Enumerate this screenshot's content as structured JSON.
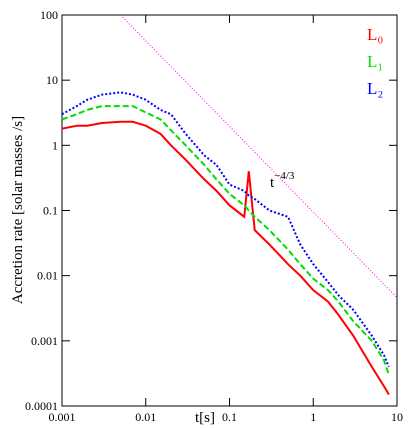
{
  "chart_data": {
    "type": "line",
    "xlabel": "t[s]",
    "ylabel": "Accretion rate [solar masses /s]",
    "x_log": true,
    "y_log": true,
    "xlim": [
      0.001,
      10
    ],
    "ylim": [
      0.0001,
      100
    ],
    "xticks": [
      0.001,
      0.01,
      0.1,
      1,
      10
    ],
    "yticks": [
      0.0001,
      0.001,
      0.01,
      0.1,
      1,
      10,
      100
    ],
    "x": [
      0.001,
      0.0015,
      0.002,
      0.003,
      0.005,
      0.007,
      0.01,
      0.015,
      0.02,
      0.03,
      0.05,
      0.07,
      0.1,
      0.15,
      0.17,
      0.2,
      0.3,
      0.5,
      0.7,
      1,
      1.5,
      2,
      3,
      5,
      7,
      8
    ],
    "series": [
      {
        "name": "L₀",
        "color": "#ff0000",
        "dash": "",
        "values": [
          1.8,
          2,
          2,
          2.2,
          2.3,
          2.3,
          2,
          1.5,
          1,
          0.6,
          0.3,
          0.2,
          0.12,
          0.08,
          0.4,
          0.05,
          0.03,
          0.015,
          0.01,
          0.006,
          0.004,
          0.0025,
          0.0012,
          0.0004,
          0.0002,
          0.00015
        ]
      },
      {
        "name": "L₁",
        "color": "#00dd00",
        "dash": "6,3",
        "values": [
          2.5,
          3,
          3.5,
          4,
          4,
          4,
          3.2,
          2.5,
          1.7,
          1,
          0.5,
          0.3,
          0.18,
          0.12,
          0.1,
          0.08,
          0.05,
          0.025,
          0.015,
          0.009,
          0.006,
          0.004,
          0.002,
          0.001,
          0.0005,
          0.0003
        ]
      },
      {
        "name": "L₂",
        "color": "#0000ff",
        "dash": "2,2",
        "values": [
          3,
          4,
          5,
          6,
          6.5,
          6,
          5,
          3.5,
          3,
          1.5,
          0.7,
          0.5,
          0.25,
          0.2,
          0.17,
          0.15,
          0.1,
          0.08,
          0.03,
          0.015,
          0.008,
          0.005,
          0.003,
          0.0012,
          0.0006,
          0.0004
        ]
      }
    ],
    "reference_line": {
      "color": "#ff00ff",
      "x": [
        0.005,
        10
      ],
      "values": [
        100,
        0.0046
      ]
    },
    "annotation_base": "t",
    "annotation_exponent": "−4/3"
  }
}
